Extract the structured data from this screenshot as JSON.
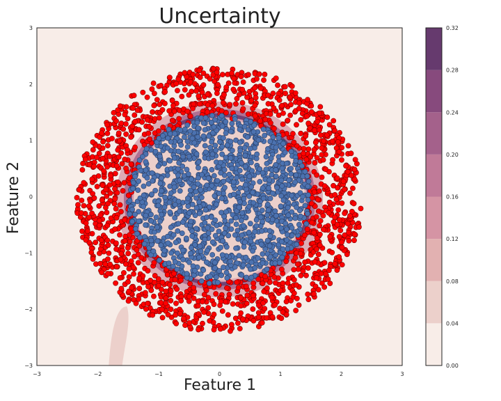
{
  "chart_data": {
    "type": "scatter",
    "title": "Uncertainty",
    "xlabel": "Feature 1",
    "ylabel": "Feature 2",
    "xlim": [
      -3,
      3
    ],
    "ylim": [
      -3,
      3
    ],
    "x_ticks": [
      -3,
      -2,
      -1,
      0,
      1,
      2,
      3
    ],
    "y_ticks": [
      -3,
      -2,
      -1,
      0,
      1,
      2,
      3
    ],
    "x_tick_labels": [
      "−3",
      "−2",
      "−1",
      "0",
      "1",
      "2",
      "3"
    ],
    "y_tick_labels": [
      "−3",
      "−2",
      "−1",
      "0",
      "1",
      "2",
      "3"
    ],
    "grid": false,
    "series": [
      {
        "color": "#ff0000",
        "description_class": "outer ring",
        "ring_inner_radius": 1.45,
        "ring_outer_radius": 2.35,
        "center": [
          0.0,
          0.0
        ]
      },
      {
        "color": "#4c72b0",
        "description_class": "inner disc",
        "ring_inner_radius": 0.0,
        "ring_outer_radius": 1.5,
        "center": [
          0.0,
          0.0
        ]
      }
    ],
    "contour": {
      "levels": [
        0.0,
        0.04,
        0.08,
        0.12,
        0.16,
        0.2,
        0.24,
        0.28,
        0.32
      ],
      "colors": [
        "#f8ede8",
        "#ecd0cb",
        "#e2b1b1",
        "#d594a4",
        "#c07a98",
        "#a4618b",
        "#874a7d",
        "#663a6e",
        "#3f2b52"
      ]
    },
    "colorbar": {
      "ticks": [
        "0.00",
        "0.04",
        "0.08",
        "0.12",
        "0.16",
        "0.20",
        "0.24",
        "0.28",
        "0.32"
      ]
    }
  }
}
